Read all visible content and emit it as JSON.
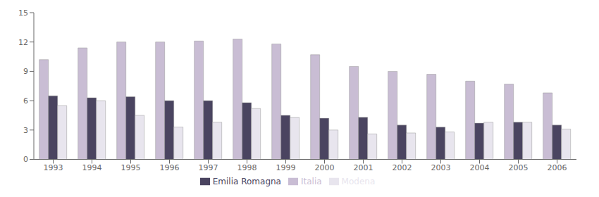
{
  "chart_data": {
    "type": "bar",
    "categories": [
      "1993",
      "1994",
      "1995",
      "1996",
      "1997",
      "1998",
      "1999",
      "2000",
      "2001",
      "2002",
      "2003",
      "2004",
      "2005",
      "2006"
    ],
    "series": [
      {
        "name": "Italia",
        "color": "#c9bdd4",
        "values": [
          10.2,
          11.4,
          12.0,
          12.0,
          12.1,
          12.3,
          11.8,
          10.7,
          9.5,
          9.0,
          8.7,
          8.0,
          7.7,
          6.8
        ]
      },
      {
        "name": "Emilia Romagna",
        "color": "#4a4460",
        "values": [
          6.5,
          6.3,
          6.4,
          6.0,
          6.0,
          5.8,
          4.5,
          4.2,
          4.3,
          3.5,
          3.3,
          3.7,
          3.8,
          3.5
        ]
      },
      {
        "name": "Modena",
        "color": "#e8e5ee",
        "values": [
          5.5,
          6.0,
          4.5,
          3.3,
          3.8,
          5.2,
          4.3,
          3.0,
          2.6,
          2.7,
          2.8,
          3.8,
          3.8,
          3.1
        ]
      }
    ],
    "ylim": [
      0,
      15
    ],
    "yticks": [
      0,
      3,
      6,
      9,
      12,
      15
    ],
    "grid": false,
    "legend": "bottom"
  }
}
